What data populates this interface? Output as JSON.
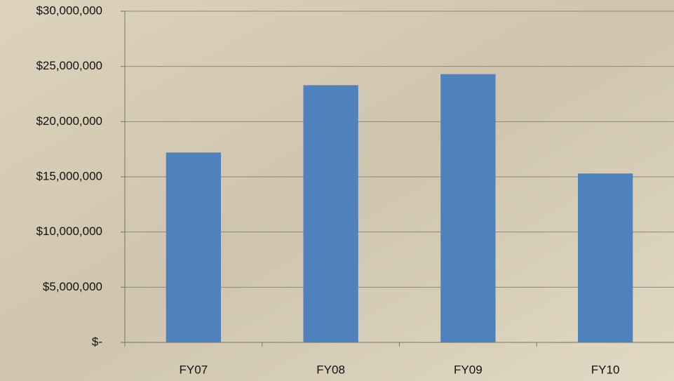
{
  "chart_data": {
    "type": "bar",
    "categories": [
      "FY07",
      "FY08",
      "FY09",
      "FY10"
    ],
    "values": [
      17200000,
      23300000,
      24300000,
      15300000
    ],
    "color": "#4f81bd",
    "ylim": [
      0,
      30000000
    ],
    "yticks": [
      {
        "value": 0,
        "label": "$-"
      },
      {
        "value": 5000000,
        "label": "$5,000,000"
      },
      {
        "value": 10000000,
        "label": "$10,000,000"
      },
      {
        "value": 15000000,
        "label": "$15,000,000"
      },
      {
        "value": 20000000,
        "label": "$20,000,000"
      },
      {
        "value": 25000000,
        "label": "$25,000,000"
      },
      {
        "value": 30000000,
        "label": "$30,000,000"
      }
    ],
    "grid": true
  }
}
